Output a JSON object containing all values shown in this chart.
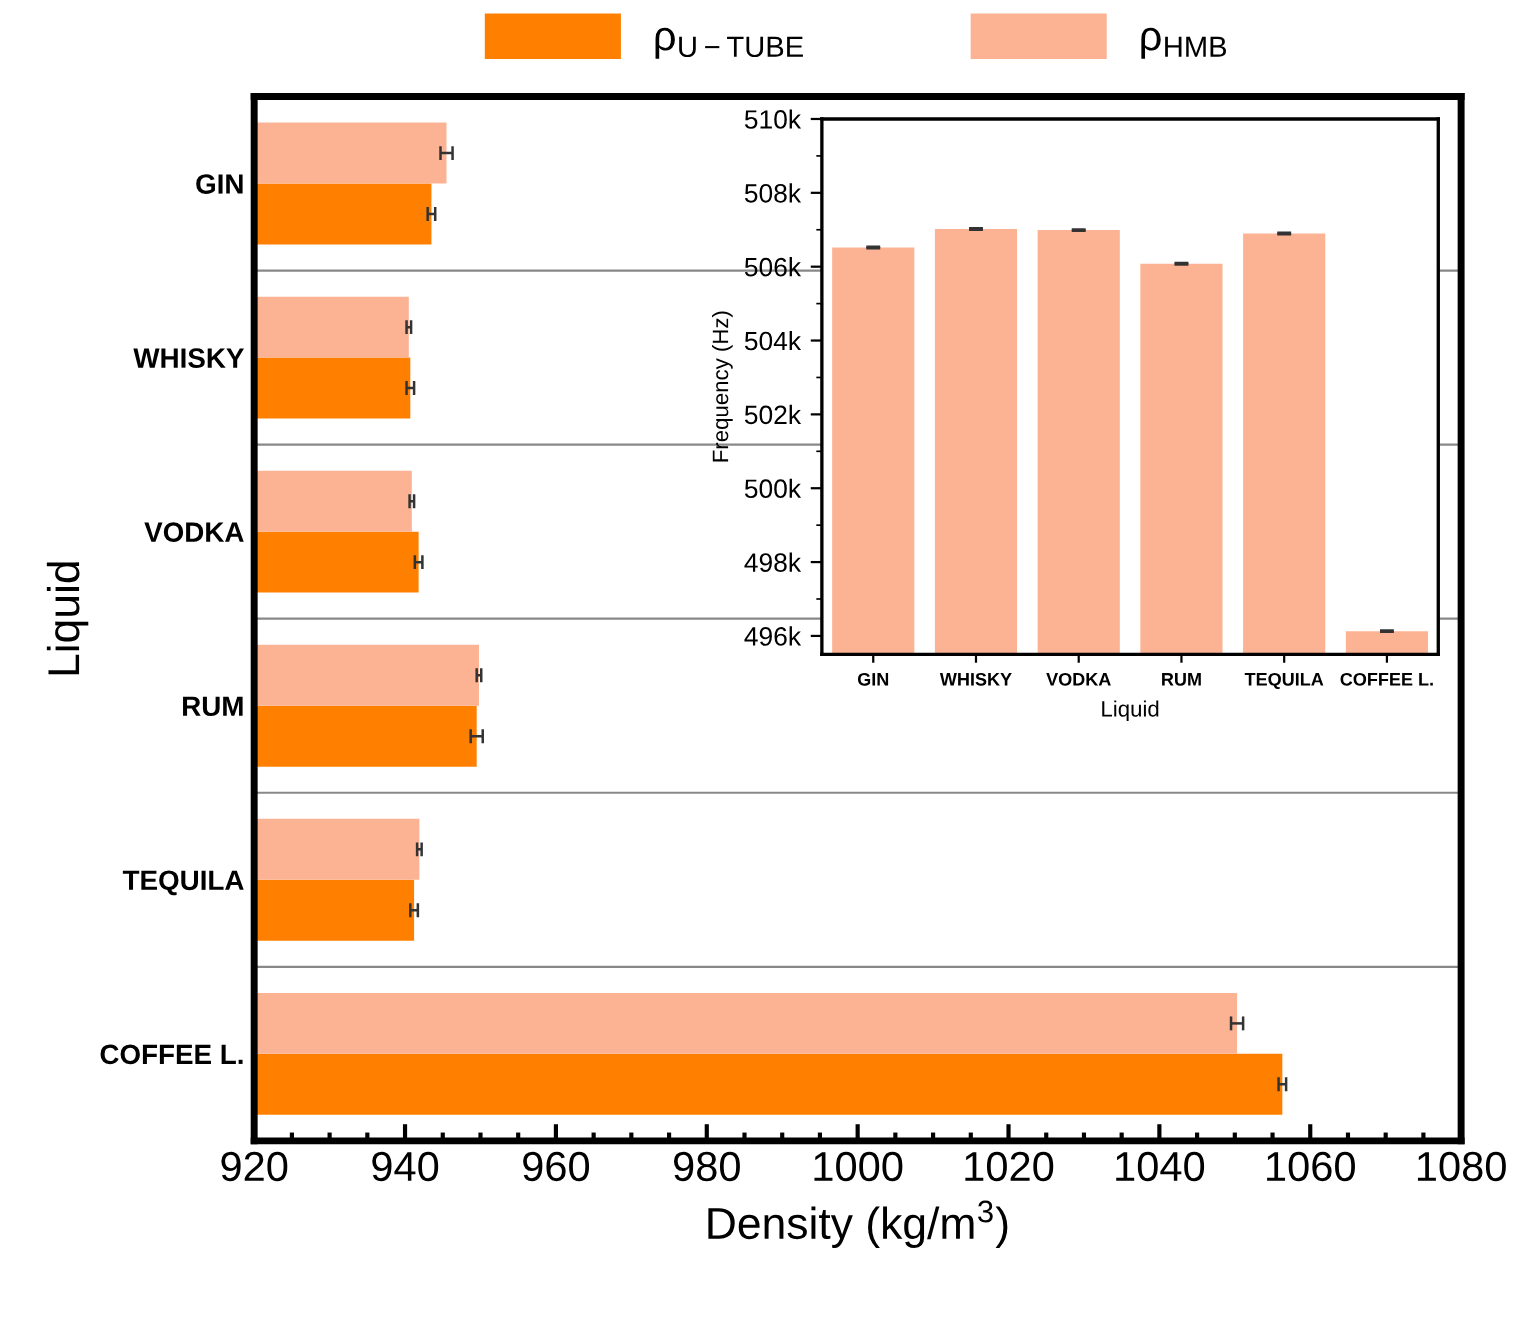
{
  "chart_data": [
    {
      "type": "bar",
      "orientation": "horizontal",
      "xlabel": "Density (kg/m$^{3}$)",
      "ylabel": "Liquid",
      "categories": [
        "GIN",
        "WHISKY",
        "VODKA",
        "RUM",
        "TEQUILA",
        "COFFEE L."
      ],
      "series": [
        {
          "name": "ρ$_{U−TUBE}$",
          "color": "#ff8000",
          "values": [
            943.5,
            940.7,
            941.8,
            949.5,
            941.2,
            1056.3
          ],
          "errors": [
            0.5,
            0.5,
            0.5,
            0.8,
            0.5,
            0.5
          ]
        },
        {
          "name": "ρ$_{HMB}$",
          "color": "#fbb394",
          "values": [
            945.5,
            940.5,
            940.9,
            949.8,
            941.9,
            1050.3
          ],
          "errors": [
            0.8,
            0.3,
            0.3,
            0.3,
            0.3,
            0.8
          ]
        }
      ],
      "xlim": [
        920,
        1080
      ],
      "xticks": [
        920,
        940,
        960,
        980,
        1000,
        1020,
        1040,
        1060,
        1080
      ],
      "grid": "y",
      "legend": "top"
    },
    {
      "type": "bar",
      "xlabel": "Liquid",
      "ylabel": "Frequency (Hz)",
      "categories": [
        "GIN",
        "WHISKY",
        "VODKA",
        "RUM",
        "TEQUILA",
        "COFFEE L."
      ],
      "series": [
        {
          "color": "#fbb394",
          "values": [
            506520,
            507020,
            506990,
            506080,
            506900,
            496130
          ],
          "errors": [
            20,
            20,
            20,
            20,
            20,
            20
          ]
        }
      ],
      "ylim": [
        495500,
        510000
      ],
      "yticks": [
        {
          "value": 496000,
          "label": "496k"
        },
        {
          "value": 498000,
          "label": "498k"
        },
        {
          "value": 500000,
          "label": "500k"
        },
        {
          "value": 502000,
          "label": "502k"
        },
        {
          "value": 504000,
          "label": "504k"
        },
        {
          "value": 506000,
          "label": "506k"
        },
        {
          "value": 508000,
          "label": "508k"
        },
        {
          "value": 510000,
          "label": "510k"
        }
      ]
    }
  ]
}
